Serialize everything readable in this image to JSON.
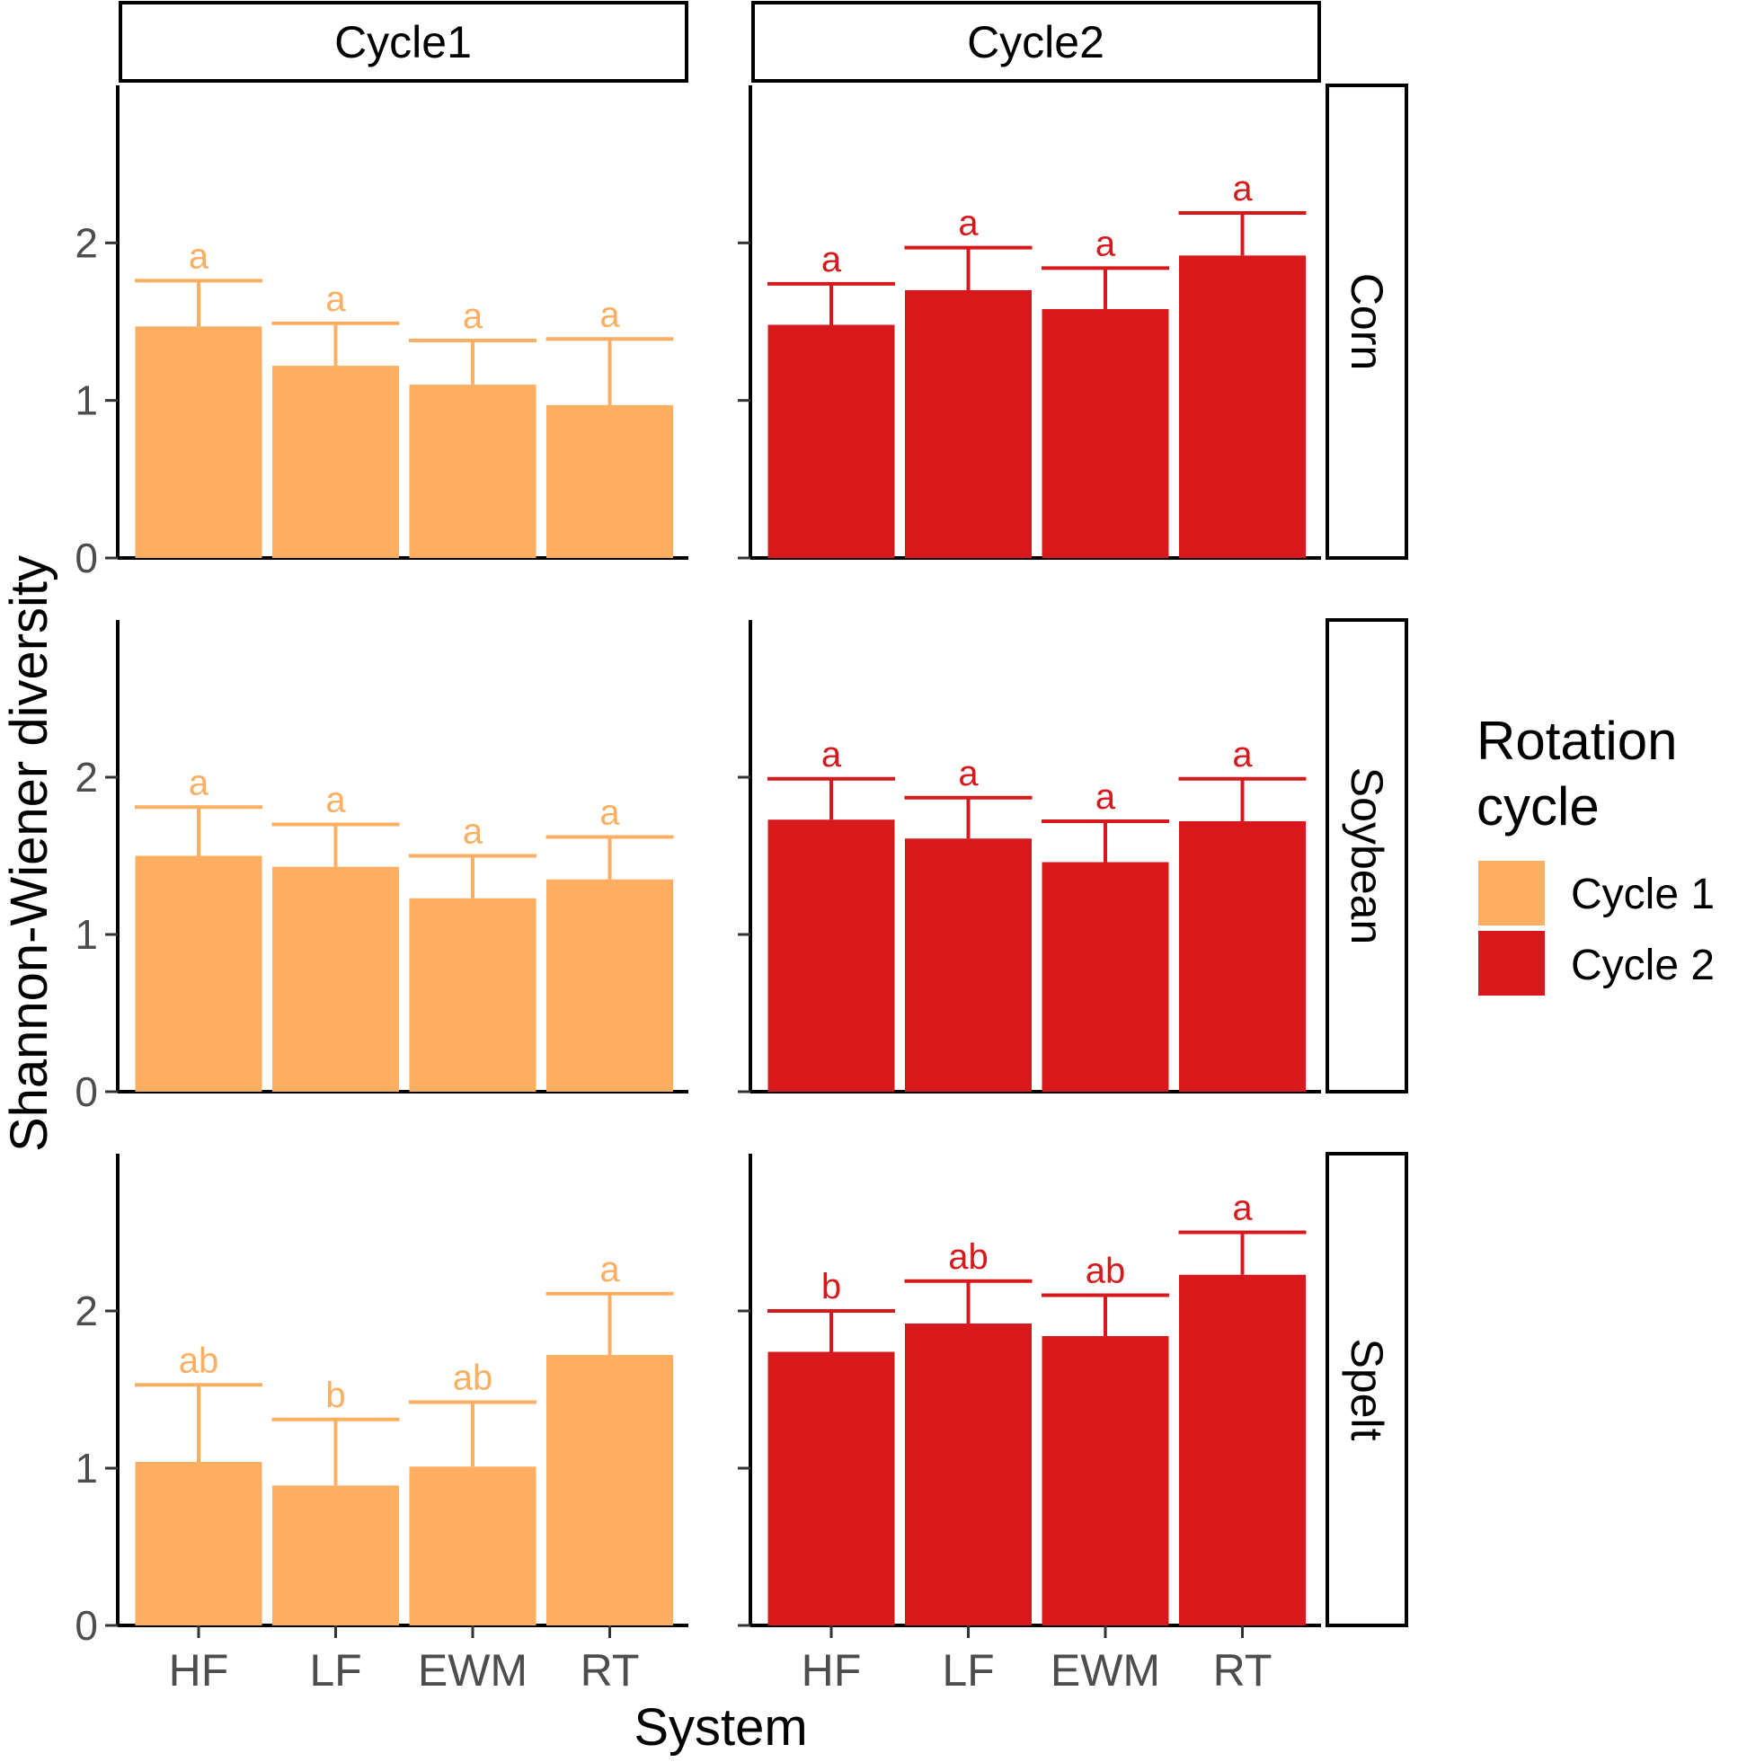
{
  "chart_data": {
    "type": "bar",
    "title": "",
    "xlabel": "System",
    "ylabel": "Shannon-Wiener diversity",
    "categories": [
      "HF",
      "LF",
      "EWM",
      "RT"
    ],
    "columns": [
      "Cycle1",
      "Cycle2"
    ],
    "rows": [
      "Corn",
      "Soybean",
      "Spelt"
    ],
    "ylim": [
      0,
      3
    ],
    "yticks": [
      0,
      1,
      2
    ],
    "legend": {
      "title_line1": "Rotation",
      "title_line2": "cycle",
      "position": "right",
      "entries": [
        {
          "label": "Cycle 1",
          "color": "#FDAE61"
        },
        {
          "label": "Cycle 2",
          "color": "#D7191C"
        }
      ]
    },
    "colors": {
      "Cycle1": "#FDAE61",
      "Cycle2": "#D7191C"
    },
    "panels": [
      {
        "row": "Corn",
        "column": "Cycle1",
        "values": [
          1.47,
          1.22,
          1.1,
          0.97
        ],
        "error": [
          0.29,
          0.27,
          0.28,
          0.42
        ],
        "letters": [
          "a",
          "a",
          "a",
          "a"
        ]
      },
      {
        "row": "Corn",
        "column": "Cycle2",
        "values": [
          1.48,
          1.7,
          1.58,
          1.92
        ],
        "error": [
          0.26,
          0.27,
          0.26,
          0.27
        ],
        "letters": [
          "a",
          "a",
          "a",
          "a"
        ]
      },
      {
        "row": "Soybean",
        "column": "Cycle1",
        "values": [
          1.5,
          1.43,
          1.23,
          1.35
        ],
        "error": [
          0.31,
          0.27,
          0.27,
          0.27
        ],
        "letters": [
          "a",
          "a",
          "a",
          "a"
        ]
      },
      {
        "row": "Soybean",
        "column": "Cycle2",
        "values": [
          1.73,
          1.61,
          1.46,
          1.72
        ],
        "error": [
          0.26,
          0.26,
          0.26,
          0.27
        ],
        "letters": [
          "a",
          "a",
          "a",
          "a"
        ]
      },
      {
        "row": "Spelt",
        "column": "Cycle1",
        "values": [
          1.04,
          0.89,
          1.01,
          1.72
        ],
        "error": [
          0.49,
          0.42,
          0.41,
          0.39
        ],
        "letters": [
          "ab",
          "b",
          "ab",
          "a"
        ]
      },
      {
        "row": "Spelt",
        "column": "Cycle2",
        "values": [
          1.74,
          1.92,
          1.84,
          2.23
        ],
        "error": [
          0.26,
          0.27,
          0.26,
          0.27
        ],
        "letters": [
          "b",
          "ab",
          "ab",
          "a"
        ]
      }
    ]
  }
}
